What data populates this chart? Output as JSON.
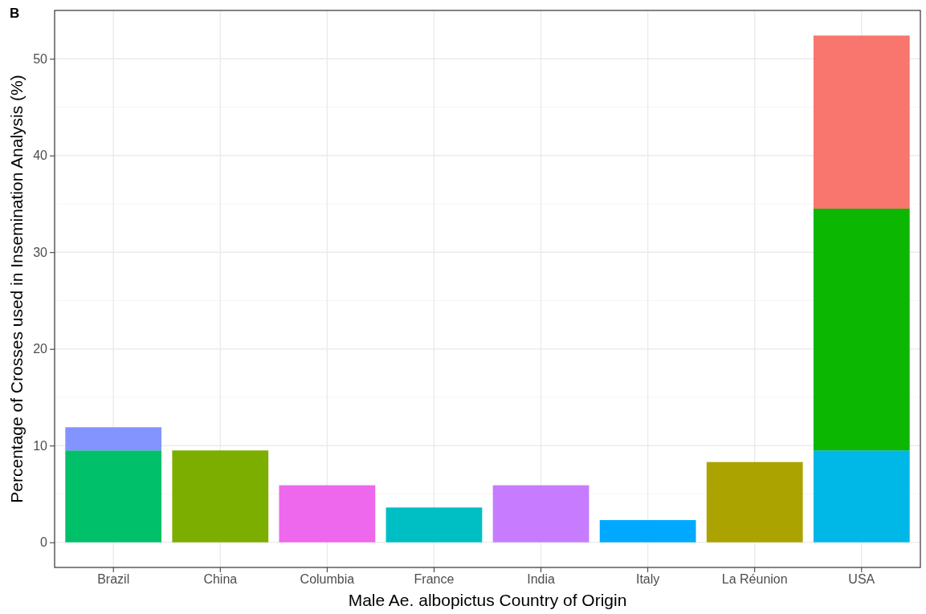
{
  "chart_data": {
    "type": "bar",
    "title": "B",
    "stacked": true,
    "xlabel": "Male Ae. albopictus Country of Origin",
    "ylabel": "Percentage of Crosses used in Insemination Analysis (%)",
    "categories": [
      "Brazil",
      "China",
      "Columbia",
      "France",
      "India",
      "Italy",
      "La Réunion",
      "USA"
    ],
    "series": [
      {
        "values": [
          9.5,
          9.5,
          5.9,
          3.6,
          5.9,
          2.3,
          8.3,
          9.5
        ],
        "colors": [
          "#00c06a",
          "#7cae00",
          "#ed68ed",
          "#00bfc4",
          "#c77cff",
          "#00a9ff",
          "#aba300",
          "#00b8e7"
        ]
      },
      {
        "values": [
          2.4,
          null,
          null,
          null,
          null,
          null,
          null,
          25.0
        ],
        "colors": [
          "#8494ff",
          null,
          null,
          null,
          null,
          null,
          null,
          "#0cb702"
        ]
      },
      {
        "values": [
          null,
          null,
          null,
          null,
          null,
          null,
          null,
          17.9
        ],
        "colors": [
          null,
          null,
          null,
          null,
          null,
          null,
          null,
          "#f8766d"
        ]
      }
    ],
    "ylim": [
      -2.6,
      55
    ],
    "yticks": [
      0,
      10,
      20,
      30,
      40,
      50
    ],
    "grid": true
  }
}
